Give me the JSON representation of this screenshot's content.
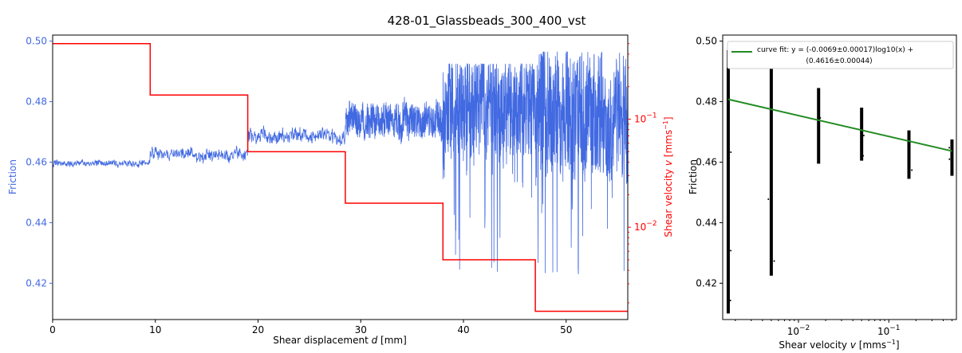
{
  "figure": {
    "title": "428-01_Glassbeads_300_400_vst"
  },
  "chart_data": [
    {
      "type": "line",
      "xlabel": "Shear displacement d [mm]",
      "xlabel_parts": {
        "text": "Shear displacement ",
        "var": "d",
        "unit": " [mm]"
      },
      "xlim": [
        0,
        56
      ],
      "xticks": [
        0,
        10,
        20,
        30,
        40,
        50
      ],
      "xtick_labels": [
        "0",
        "10",
        "20",
        "30",
        "40",
        "50"
      ],
      "grid": false,
      "left_axis": {
        "label": "Friction",
        "color": "#4169e1",
        "ylim": [
          0.408,
          0.502
        ],
        "yticks": [
          0.42,
          0.44,
          0.46,
          0.48,
          0.5
        ],
        "ytick_labels": [
          "0.42",
          "0.44",
          "0.46",
          "0.48",
          "0.50"
        ]
      },
      "right_axis": {
        "label": "Shear velocity v [mms⁻¹]",
        "label_parts": {
          "text": "Shear velocity ",
          "var": "v",
          "unit_start": " [mms",
          "sup": "−1",
          "unit_end": "]"
        },
        "color": "#ff0000",
        "scale": "log",
        "ylim": [
          0.0014,
          0.6
        ],
        "yticks": [
          0.01,
          0.1
        ],
        "ytick_labels": [
          {
            "base": "10",
            "exp": "−2"
          },
          {
            "base": "10",
            "exp": "−1"
          }
        ]
      },
      "series": [
        {
          "color": "#4169e1",
          "axis": "left",
          "segments": [
            {
              "x": [
                0,
                9.5
              ],
              "mean": 0.4595,
              "low": 0.456,
              "high": 0.4635
            },
            {
              "x": [
                9.5,
                19
              ],
              "mean": 0.4625,
              "low": 0.4565,
              "high": 0.4705
            },
            {
              "x": [
                19,
                28.5
              ],
              "mean": 0.4685,
              "low": 0.4605,
              "high": 0.4775
            },
            {
              "x": [
                28.5,
                38
              ],
              "mean": 0.4735,
              "low": 0.459,
              "high": 0.4835
            },
            {
              "x": [
                38,
                47
              ],
              "mean": 0.4775,
              "low": 0.4225,
              "high": 0.4925
            },
            {
              "x": [
                47,
                56
              ],
              "mean": 0.4755,
              "low": 0.414,
              "high": 0.4965
            }
          ]
        },
        {
          "color": "#ff0000",
          "axis": "right",
          "steps": [
            {
              "x0": 0,
              "x1": 9.5,
              "v": 0.5
            },
            {
              "x0": 9.5,
              "x1": 19,
              "v": 0.167
            },
            {
              "x0": 19,
              "x1": 28.5,
              "v": 0.05
            },
            {
              "x0": 28.5,
              "x1": 38,
              "v": 0.0167
            },
            {
              "x0": 38,
              "x1": 47,
              "v": 0.005
            },
            {
              "x0": 47,
              "x1": 56,
              "v": 0.00167
            }
          ]
        }
      ]
    },
    {
      "type": "scatter",
      "xlabel": "Shear velocity v [mms⁻¹]",
      "xlabel_parts": {
        "text": "Shear velocity ",
        "var": "v",
        "unit_start": " [mms",
        "sup": "−1",
        "unit_end": "]"
      },
      "ylabel": "Friction",
      "xscale": "log",
      "xlim": [
        0.00145,
        0.56
      ],
      "ylim": [
        0.408,
        0.502
      ],
      "xticks": [
        0.01,
        0.1
      ],
      "xtick_labels": [
        {
          "base": "10",
          "exp": "−2"
        },
        {
          "base": "10",
          "exp": "−1"
        }
      ],
      "yticks": [
        0.42,
        0.44,
        0.46,
        0.48,
        0.5
      ],
      "ytick_labels": [
        "0.42",
        "0.44",
        "0.46",
        "0.48",
        "0.50"
      ],
      "grid": false,
      "point_color": "#000000",
      "columns": [
        {
          "x": 0.00167,
          "ymin": 0.41,
          "ymax": 0.497
        },
        {
          "x": 0.005,
          "ymin": 0.4225,
          "ymax": 0.4925
        },
        {
          "x": 0.0167,
          "ymin": 0.4595,
          "ymax": 0.4845
        },
        {
          "x": 0.05,
          "ymin": 0.4605,
          "ymax": 0.478
        },
        {
          "x": 0.167,
          "ymin": 0.4545,
          "ymax": 0.4705
        },
        {
          "x": 0.5,
          "ymin": 0.4555,
          "ymax": 0.4675
        }
      ],
      "fit": {
        "color": "#228b22",
        "slope": -0.0069,
        "intercept": 0.4616,
        "legend_lines": [
          "curve fit: y = (-0.0069±0.00017)log10(x) +",
          "(0.4616±0.00044)"
        ],
        "legend_placement": "top-right"
      }
    }
  ]
}
